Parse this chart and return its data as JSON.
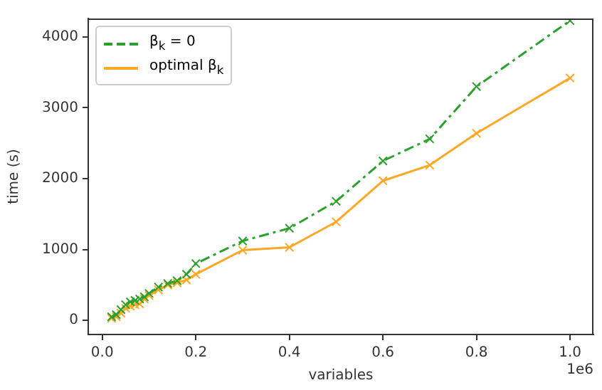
{
  "chart_data": {
    "type": "line",
    "xlabel": "variables",
    "ylabel": "time (s)",
    "annotations": [
      "1e6"
    ],
    "x": [
      0.02,
      0.03,
      0.04,
      0.05,
      0.06,
      0.07,
      0.08,
      0.09,
      0.1,
      0.12,
      0.14,
      0.16,
      0.18,
      0.2,
      0.3,
      0.4,
      0.5,
      0.6,
      0.7,
      0.8,
      1.0
    ],
    "series": [
      {
        "name": "β$_{k}$ = 0",
        "color": "#2ca02c",
        "line_style": "dashed",
        "values": [
          50,
          80,
          150,
          220,
          260,
          280,
          300,
          330,
          380,
          470,
          520,
          560,
          650,
          800,
          1120,
          1300,
          1680,
          2250,
          2560,
          3300,
          4230
        ]
      },
      {
        "name": "optimal β$_{k}$",
        "color": "#ffa726",
        "line_style": "solid",
        "values": [
          30,
          50,
          100,
          170,
          200,
          220,
          230,
          300,
          350,
          430,
          500,
          530,
          570,
          650,
          990,
          1030,
          1390,
          1970,
          2190,
          2640,
          3420
        ]
      }
    ],
    "xlim": [
      -0.03,
      1.05
    ],
    "xticks": [
      {
        "value": 0,
        "label": "0.0"
      },
      0.2,
      0.4,
      0.6,
      0.8,
      {
        "value": 1,
        "label": "1.0"
      }
    ],
    "ylim": [
      -200,
      4260
    ],
    "yticks": [
      0,
      1000,
      2000,
      3000,
      4000
    ],
    "grid": false,
    "legend": "top left",
    "marker": "cross"
  }
}
